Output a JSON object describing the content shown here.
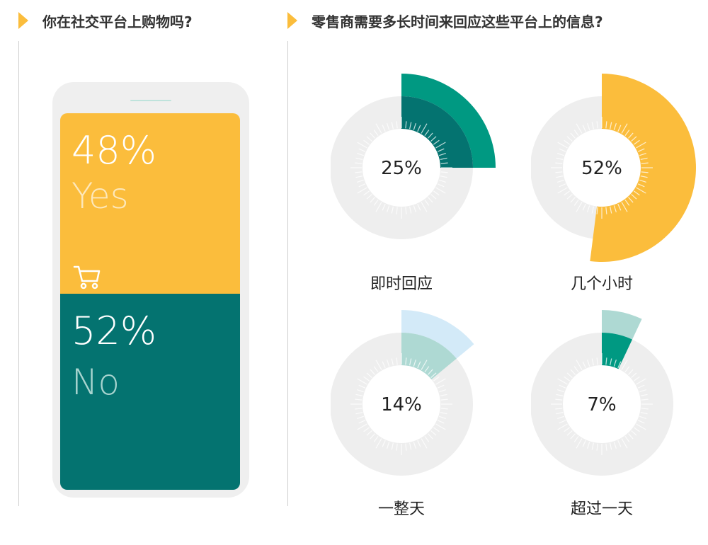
{
  "left_panel": {
    "title": "你在社交平台上购物吗?",
    "yes_percent": "48%",
    "yes_label": "Yes",
    "no_percent": "52%",
    "no_label": "No"
  },
  "right_panel": {
    "title": "零售商需要多长时间来回应这些平台上的信息?"
  },
  "colors": {
    "accent": "#fbbd3c",
    "teal": "#047370",
    "teal_bright": "#009982",
    "teal_light": "#aed9d3",
    "light_blue": "#d3eaf8",
    "track": "#eeeeee",
    "text": "#333333"
  },
  "chart_data": [
    {
      "type": "bar",
      "title": "你在社交平台上购物吗?",
      "categories": [
        "Yes",
        "No"
      ],
      "values": [
        48,
        52
      ],
      "unit": "%"
    },
    {
      "type": "pie",
      "title": "零售商需要多长时间来回应这些平台上的信息?",
      "categories": [
        "即时回应",
        "几个小时",
        "一整天",
        "超过一天"
      ],
      "values": [
        25,
        52,
        14,
        7
      ],
      "labels": [
        "25%",
        "52%",
        "14%",
        "7%"
      ],
      "unit": "%"
    }
  ]
}
